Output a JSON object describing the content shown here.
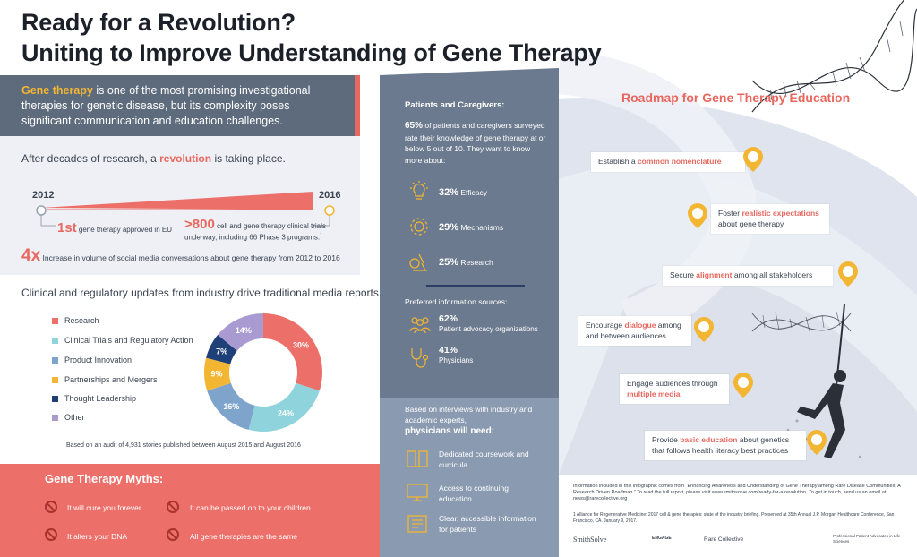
{
  "title": {
    "line1": "Ready for a Revolution?",
    "line2": "Uniting to Improve Understanding of Gene Therapy"
  },
  "intro": {
    "lead": "Gene therapy",
    "rest": " is one of the most promising investigational therapies for genetic disease, but its complexity poses significant communication and education challenges."
  },
  "decades": {
    "pre": "After decades of research, a ",
    "highlight": "revolution",
    "post": " is taking place."
  },
  "timeline": {
    "start_year": "2012",
    "end_year": "2016",
    "first_big": "1st",
    "first_text": " gene therapy approved in EU",
    "trials_big": ">800",
    "trials_text": " cell and gene therapy clinical trials underway, including 66 Phase 3 programs.",
    "trials_sup": "1",
    "fourx_big": "4x",
    "fourx_text": " Increase in volume of social media conversations about gene therapy from 2012 to 2016"
  },
  "clinical": {
    "title": "Clinical and regulatory updates from industry drive traditional media reports.",
    "audit": "Based on an audit of 4,931 stories published between August 2015 and August 2016"
  },
  "chart_data": {
    "type": "pie",
    "categories": [
      "Research",
      "Clinical Trials and Regulatory Action",
      "Product Innovation",
      "Partnerships and Mergers",
      "Thought Leadership",
      "Other"
    ],
    "values": [
      30,
      24,
      16,
      9,
      7,
      14
    ],
    "labels": [
      "30%",
      "24%",
      "16%",
      "9%",
      "7%",
      "14%"
    ],
    "colors": [
      "#ec6f69",
      "#8fd3dc",
      "#7fa4cc",
      "#f2b632",
      "#1f3f78",
      "#a99bd2"
    ],
    "legend_position": "left"
  },
  "myths": {
    "title": "Gene Therapy Myths:",
    "items": [
      "It will cure you forever",
      "It can be passed on to your children",
      "It alters your DNA",
      "All gene therapies are the same"
    ]
  },
  "patients": {
    "title": "Patients and Caregivers:",
    "body_big": "65%",
    "body_text": " of patients and caregivers surveyed rate their knowledge of gene therapy at or below 5 out of 10. They want to know more about:",
    "wants": [
      {
        "pct": "32%",
        "label": " Efficacy"
      },
      {
        "pct": "29%",
        "label": " Mechanisms"
      },
      {
        "pct": "25%",
        "label": " Research"
      }
    ],
    "pref_title": "Preferred information sources:",
    "sources": [
      {
        "pct": "62%",
        "label": "Patient advocacy organizations"
      },
      {
        "pct": "41%",
        "label": "Physicians"
      }
    ]
  },
  "physicians": {
    "intro": "Based on interviews with industry and academic experts,",
    "intro_big": "physicians will need:",
    "needs": [
      "Dedicated coursework and curricula",
      "Access to continuing education",
      "Clear, accessible information for patients"
    ]
  },
  "roadmap": {
    "title": "Roadmap for Gene Therapy Education",
    "steps": [
      {
        "pre": "Establish a ",
        "hl": "common nomenclature",
        "post": ""
      },
      {
        "pre": "Foster ",
        "hl": "realistic expectations",
        "post": " about gene therapy"
      },
      {
        "pre": "Secure ",
        "hl": "alignment",
        "post": " among all stakeholders"
      },
      {
        "pre": "Encourage ",
        "hl": "dialogue",
        "post": " among and between audiences"
      },
      {
        "pre": "Engage audiences through ",
        "hl": "multiple media",
        "post": ""
      },
      {
        "pre": "Provide ",
        "hl": "basic education",
        "post": " about genetics that follows health literacy best practices"
      }
    ]
  },
  "info": {
    "text": "Information included in this infographic comes from “Enhancing Awareness and Understanding of Gene Therapy among Rare Disease Communities: A Research Driven Roadmap.” To read the full report, please visit www.smithsolve.com/ready-for-a-revolution. To get in touch, send us an email at: news@rarecollective.org",
    "footnote": "1  Alliance for Regenerative Medicine: 2017 cell & gene therapies: state of the industry briefing. Presented at 35th Annual J.P. Morgan Healthcare Conference, San Francisco, CA. January 9, 2017."
  },
  "logos": [
    "SmithSolve",
    "ENGAGE",
    "Rare Collective",
    "Professional Patient Advocates in Life Sciences"
  ]
}
